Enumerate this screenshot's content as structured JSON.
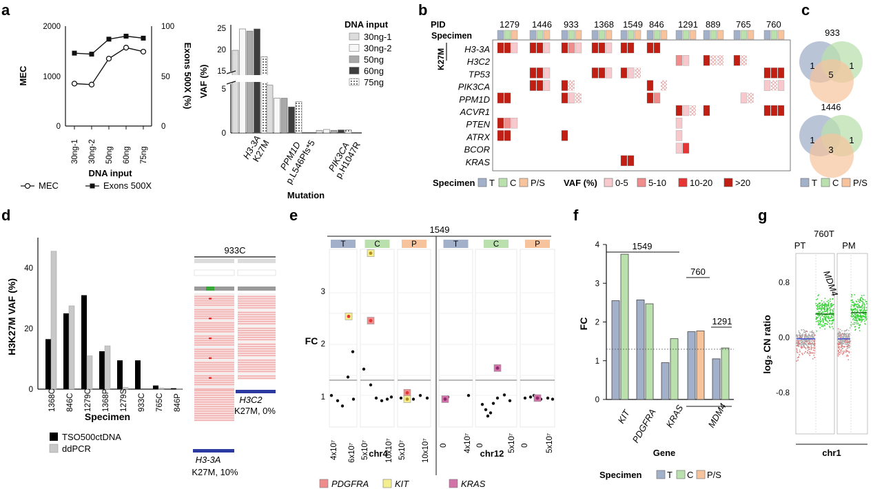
{
  "panel_letters": [
    "a",
    "b",
    "c",
    "d",
    "e",
    "f",
    "g"
  ],
  "colors": {
    "T": "#a3b0c9",
    "C": "#b9e0ad",
    "PS": "#f6c39c",
    "vaf0": "#f8c9cc",
    "vaf5": "#ef8c8c",
    "vaf10": "#e53534",
    "vaf20": "#c21f14"
  },
  "chart_data": [
    {
      "id": "a-left",
      "type": "line",
      "title": "",
      "categories": [
        "30ng-1",
        "30ng-2",
        "50ng",
        "60ng",
        "75ng"
      ],
      "series": [
        {
          "name": "MEC",
          "axis": "left",
          "values": [
            850,
            830,
            1350,
            1570,
            1490
          ]
        },
        {
          "name": "Exons 500X",
          "axis": "right",
          "values": [
            73,
            72,
            87,
            90,
            88
          ]
        }
      ],
      "left_ticks": [
        "0",
        "1000",
        "2000"
      ],
      "left_ylim": [
        0,
        2000
      ],
      "right_ticks": [
        "0",
        "50",
        "100"
      ],
      "right_ylim": [
        0,
        100
      ],
      "xlabel": "DNA input",
      "ylabel": "MEC",
      "ylabel_right": "Exons 500X (%)"
    },
    {
      "id": "a-right",
      "type": "bar",
      "title": "",
      "groups": [
        {
          "mutation_gene": "H3-3A",
          "mutation_variant": "K27M",
          "values": [
            20,
            25,
            24.5,
            25,
            18.5
          ]
        },
        {
          "mutation_gene": "PPM1D",
          "mutation_variant": "p.L546Pfs*5",
          "values": [
            5.5,
            4.0,
            4.0,
            3.0,
            3.6
          ]
        },
        {
          "mutation_gene": "PIK3CA",
          "mutation_variant": "p.H1047R",
          "values": [
            0.3,
            0.4,
            0.3,
            0.35,
            0.35
          ]
        }
      ],
      "series_names": [
        "30ng-1",
        "30ng-2",
        "50ng",
        "60ng",
        "75ng"
      ],
      "legend_title": "DNA input",
      "ylabel": "VAF (%)",
      "xlabel": "Mutation",
      "lower_ticks": [
        "0",
        "5"
      ],
      "upper_ticks": [
        "15",
        "20",
        "25"
      ]
    },
    {
      "id": "d",
      "type": "bar",
      "title": "",
      "categories": [
        "1368C",
        "846C",
        "1279C",
        "1368P",
        "1279S",
        "933C",
        "765C",
        "846P"
      ],
      "series": [
        {
          "name": "TSO500ctDNA",
          "values": [
            16.5,
            25,
            31,
            12.5,
            9.5,
            9.5,
            1.2,
            0.3
          ]
        },
        {
          "name": "ddPCR",
          "values": [
            45.5,
            27.5,
            11,
            14.3,
            0.6,
            0,
            0.4,
            0.2
          ]
        }
      ],
      "ylabel": "H3K27M VAF (%)",
      "xlabel": "Specimen",
      "yticks": [
        "0",
        "20",
        "40"
      ],
      "ylim": [
        0,
        50
      ]
    },
    {
      "id": "f",
      "type": "bar",
      "title": "",
      "categories": [
        "KIT",
        "PDGFRA",
        "KRAS",
        "MDM4 (760)",
        "MDM4 (1291)"
      ],
      "series": [
        {
          "name": "T",
          "values": [
            2.55,
            2.57,
            0.95,
            1.75,
            1.05
          ]
        },
        {
          "name": "C",
          "values": [
            3.75,
            2.47,
            1.57,
            null,
            1.33
          ]
        },
        {
          "name": "P/S",
          "values": [
            null,
            null,
            null,
            1.77,
            null
          ]
        }
      ],
      "xlabel": "Gene",
      "ylabel": "FC",
      "yticks": [
        "0",
        "1",
        "2",
        "3",
        "4"
      ],
      "ylim": [
        0,
        4
      ],
      "threshold": 1.3
    }
  ],
  "panel_a": {
    "mec_ticks": [
      "0",
      "1000",
      "2000"
    ],
    "exon_ticks": [
      "0",
      "50",
      "100"
    ],
    "cats": [
      "30ng-1",
      "30ng-2",
      "50ng",
      "60ng",
      "75ng"
    ],
    "xlabel": "DNA input",
    "ylabel": "MEC",
    "ylabel_right": "Exons 500X (%)",
    "legend_mec": "MEC",
    "legend_exons": "Exons 500X",
    "vaf_ylabel": "VAF (%)",
    "vaf_low_ticks": [
      "0",
      "5"
    ],
    "vaf_high_ticks": [
      "15",
      "20",
      "25"
    ],
    "mut_gene_1": "H3-3A",
    "mut_var_1": "K27M",
    "mut_gene_2": "PPM1D",
    "mut_var_2": "p.L546Pfs*5",
    "mut_gene_3": "PIK3CA",
    "mut_var_3": "p.H1047R",
    "mutation_label": "Mutation",
    "legend_title": "DNA input",
    "legend_items": [
      "30ng-1",
      "30ng-2",
      "50ng",
      "60ng",
      "75ng"
    ]
  },
  "panel_b": {
    "pid_label": "PID",
    "specimen_label": "Specimen",
    "k27m_label": "K27M",
    "pids": [
      "1279",
      "1446",
      "933",
      "1368",
      "1549",
      "846",
      "1291",
      "889",
      "765",
      "760"
    ],
    "genes": [
      "H3-3A",
      "H3C2",
      "TP53",
      "PIK3CA",
      "PPM1D",
      "ACVR1",
      "PTEN",
      "ATRX",
      "BCOR",
      "KRAS"
    ],
    "legend_specimen": "Specimen",
    "legend_T": "T",
    "legend_C": "C",
    "legend_PS": "P/S",
    "legend_vaf": "VAF (%)",
    "legend_vaf_bins": [
      "0-5",
      "5-10",
      "10-20",
      ">20"
    ]
  },
  "panel_c": {
    "venn1_title": "933",
    "venn1_T": "1",
    "venn1_C": "1",
    "venn1_center": "5",
    "venn2_title": "1446",
    "venn2_T": "1",
    "venn2_C": "1",
    "venn2_center": "3",
    "legend": [
      "T",
      "C",
      "P/S"
    ]
  },
  "panel_d": {
    "ylabel": "H3K27M VAF (%)",
    "xlabel": "Specimen",
    "yticks": [
      "0",
      "20",
      "40"
    ],
    "cats": [
      "1368C",
      "846C",
      "1279C",
      "1368P",
      "1279S",
      "933C",
      "765C",
      "846P"
    ],
    "legend_tso": "TSO500ctDNA",
    "legend_ddpcr": "ddPCR",
    "igv_title": "933C",
    "igv_gene_1": "H3-3A",
    "igv_note_1": "K27M, 10%",
    "igv_gene_2": "H3C2",
    "igv_note_2": "K27M, 0%"
  },
  "panel_e": {
    "title": "1549",
    "ylabel": "FC",
    "yticks": [
      "1",
      "2",
      "3"
    ],
    "strip_labels": [
      "T",
      "C",
      "P",
      "T",
      "C",
      "P"
    ],
    "chr4_label": "chr4",
    "chr12_label": "chr12",
    "xticks_chr4": [
      "4x10⁷",
      "6x10⁷",
      "5x10⁷",
      "10x10⁷",
      "5x10⁷",
      "10x10⁷"
    ],
    "xticks_chr12": [
      "0",
      "4x10⁷",
      "0",
      "5x10⁷",
      "0",
      "5x10⁷"
    ],
    "legend": [
      "PDGFRA",
      "KIT",
      "KRAS"
    ]
  },
  "panel_f": {
    "ylabel": "FC",
    "xlabel": "Gene",
    "yticks": [
      "0",
      "1",
      "2",
      "3",
      "4"
    ],
    "group_1549": "1549",
    "group_760": "760",
    "group_1291": "1291",
    "genes": [
      "KIT",
      "PDGFRA",
      "KRAS",
      "MDM4"
    ],
    "legend_title": "Specimen",
    "legend": [
      "T",
      "C",
      "P/S"
    ]
  },
  "panel_g": {
    "title": "760T",
    "col1": "PT",
    "col2": "PM",
    "gene_label": "MDM4",
    "ylabel": "log₂ CN ratio",
    "yticks": [
      "0.8",
      "0.0",
      "-0.8"
    ],
    "xlabel": "chr1"
  }
}
